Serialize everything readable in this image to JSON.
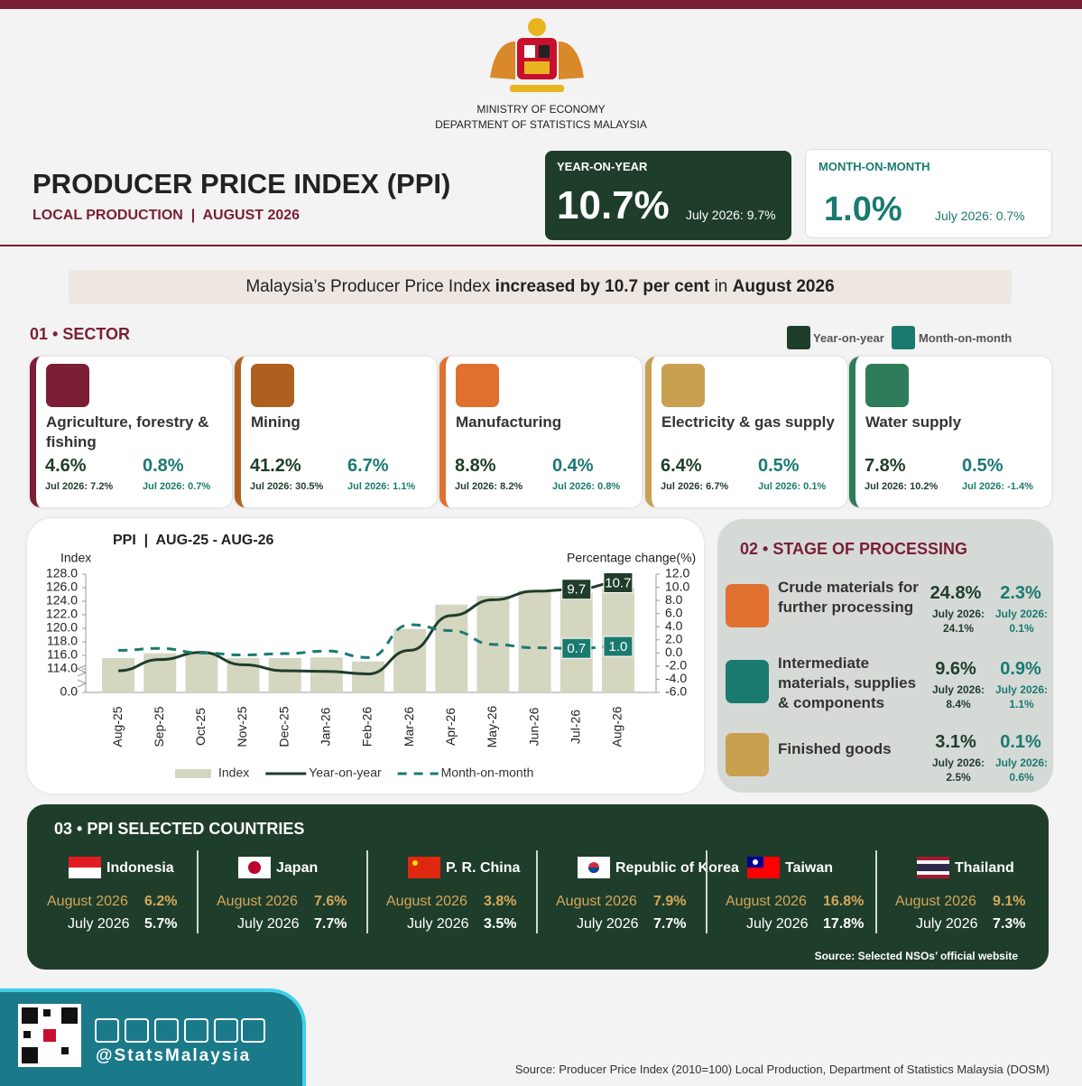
{
  "header": {
    "ministry": "MINISTRY OF ECONOMY",
    "department": "DEPARTMENT OF STATISTICS MALAYSIA",
    "title": "PRODUCER PRICE INDEX (PPI)",
    "subtitle": "LOCAL PRODUCTION  |  AUGUST 2026"
  },
  "kpis": [
    {
      "label": "YEAR-ON-YEAR",
      "value": "10.7%",
      "previous": "July 2026: 9.7%"
    },
    {
      "label": "MONTH-ON-MONTH",
      "value": "1.0%",
      "previous": "July 2026: 0.7%"
    }
  ],
  "headline": [
    "Malaysia’s Producer Price Index ",
    "increased by 10.7 per cent",
    " in ",
    "August 2026"
  ],
  "sector": {
    "heading": "01 • SECTOR",
    "legend": [
      "Year-on-year",
      "Month-on-month"
    ],
    "items": [
      {
        "name": "Agriculture, forestry & fishing",
        "yoy": "4.6%",
        "yoy_prev": "Jul 2026: 7.2%",
        "mom": "0.8%",
        "mom_prev": "Jul 2026: 0.7%"
      },
      {
        "name": "Mining",
        "yoy": "41.2%",
        "yoy_prev": "Jul 2026: 30.5%",
        "mom": "6.7%",
        "mom_prev": "Jul 2026: 1.1%"
      },
      {
        "name": "Manufacturing",
        "yoy": "8.8%",
        "yoy_prev": "Jul 2026: 8.2%",
        "mom": "0.4%",
        "mom_prev": "Jul 2026: 0.8%"
      },
      {
        "name": "Electricity & gas supply",
        "yoy": "6.4%",
        "yoy_prev": "Jul 2026: 6.7%",
        "mom": "0.5%",
        "mom_prev": "Jul 2026: 0.1%"
      },
      {
        "name": "Water supply",
        "yoy": "7.8%",
        "yoy_prev": "Jul 2026: 10.2%",
        "mom": "0.5%",
        "mom_prev": "Jul 2026: -1.4%"
      }
    ]
  },
  "chart_data": {
    "type": "bar",
    "title": "PPI  |  AUG-25 - AUG-26",
    "y_label": "Index",
    "y2_label": "Percentage change(%)",
    "categories": [
      "Aug-25",
      "Sep-25",
      "Oct-25",
      "Nov-25",
      "Dec-25",
      "Jan-26",
      "Feb-26",
      "Mar-26",
      "Apr-26",
      "May-26",
      "Jun-26",
      "Jul-26",
      "Aug-26"
    ],
    "ylim": [
      0,
      128
    ],
    "ybreak": true,
    "yticks": [
      {
        "value": 0,
        "label": "0.0"
      },
      {
        "value": 114,
        "label": "114.0"
      },
      {
        "value": 116,
        "label": "116.0"
      },
      {
        "value": 118,
        "label": "118.0"
      },
      {
        "value": 120,
        "label": "120.0"
      },
      {
        "value": 122,
        "label": "122.0"
      },
      {
        "value": 124,
        "label": "124.0"
      },
      {
        "value": 126,
        "label": "126.0"
      },
      {
        "value": 128,
        "label": "128.0"
      }
    ],
    "y2lim": [
      -6,
      12
    ],
    "y2ticks": [
      {
        "value": 12,
        "label": "12.0"
      },
      {
        "value": 10,
        "label": "10.0"
      },
      {
        "value": 8,
        "label": "8.0"
      },
      {
        "value": 6,
        "label": "6.0"
      },
      {
        "value": 4,
        "label": "4.0"
      },
      {
        "value": 2,
        "label": "2.0"
      },
      {
        "value": 0,
        "label": "0.0"
      },
      {
        "value": -2,
        "label": "-2.0"
      },
      {
        "value": -4,
        "label": "-4.0"
      },
      {
        "value": -6,
        "label": "-6.0"
      }
    ],
    "series": [
      {
        "name": "Index",
        "type": "bar",
        "color": "#d4d6c0",
        "values": [
          115.6,
          116.3,
          116.5,
          115.6,
          115.6,
          115.7,
          115.1,
          119.9,
          123.5,
          124.8,
          125.6,
          125.3,
          126.0
        ]
      },
      {
        "name": "Year-on-year",
        "type": "line",
        "axis": "y2",
        "color": "#1f3d2b",
        "values": [
          -2.7,
          -1.0,
          0.1,
          -1.8,
          -2.7,
          -2.8,
          -3.2,
          0.4,
          5.7,
          8.1,
          9.4,
          9.7,
          10.7
        ],
        "value_labels": [
          null,
          null,
          null,
          null,
          null,
          null,
          null,
          null,
          null,
          null,
          null,
          "9.7",
          "10.7"
        ]
      },
      {
        "name": "Month-on-month",
        "type": "line",
        "dashed": true,
        "axis": "y2",
        "color": "#1a7a70",
        "values": [
          0.4,
          0.7,
          0.0,
          -0.3,
          -0.1,
          0.3,
          -0.7,
          4.3,
          3.4,
          1.3,
          0.8,
          0.7,
          1.0
        ],
        "value_labels": [
          null,
          null,
          null,
          null,
          null,
          null,
          null,
          null,
          null,
          null,
          null,
          "0.7",
          "1.0"
        ]
      }
    ]
  },
  "stage": {
    "heading": "02 • STAGE OF PROCESSING",
    "items": [
      {
        "name": "Crude materials for further processing",
        "yoy": "24.8%",
        "yoy_prev": "July 2026: 24.1%",
        "mom": "2.3%",
        "mom_prev": "July 2026: 0.1%"
      },
      {
        "name": "Intermediate materials, supplies & components",
        "yoy": "9.6%",
        "yoy_prev": "July 2026: 8.4%",
        "mom": "0.9%",
        "mom_prev": "July 2026: 1.1%"
      },
      {
        "name": "Finished goods",
        "yoy": "3.1%",
        "yoy_prev": "July 2026: 2.5%",
        "mom": "0.1%",
        "mom_prev": "July 2026: 0.6%"
      }
    ]
  },
  "countries": {
    "heading": "03 • PPI SELECTED COUNTRIES",
    "items": [
      {
        "name": "Indonesia",
        "cur_label": "August 2026",
        "cur": "6.2%",
        "prev_label": "July 2026",
        "prev": "5.7%"
      },
      {
        "name": "Japan",
        "cur_label": "August 2026",
        "cur": "7.6%",
        "prev_label": "July 2026",
        "prev": "7.7%"
      },
      {
        "name": "P. R. China",
        "cur_label": "August 2026",
        "cur": "3.8%",
        "prev_label": "July 2026",
        "prev": "3.5%"
      },
      {
        "name": "Republic of Korea",
        "cur_label": "August 2026",
        "cur": "7.9%",
        "prev_label": "July 2026",
        "prev": "7.7%"
      },
      {
        "name": "Taiwan",
        "cur_label": "August 2026",
        "cur": "16.8%",
        "prev_label": "July 2026",
        "prev": "17.8%"
      },
      {
        "name": "Thailand",
        "cur_label": "August 2026",
        "cur": "9.1%",
        "prev_label": "July 2026",
        "prev": "7.3%"
      }
    ],
    "source": "Source: Selected NSOs’ official website"
  },
  "footer": {
    "handle": "@StatsMalaysia",
    "source": "Source: Producer Price Index (2010=100) Local Production, Department of Statistics Malaysia (DOSM)"
  }
}
